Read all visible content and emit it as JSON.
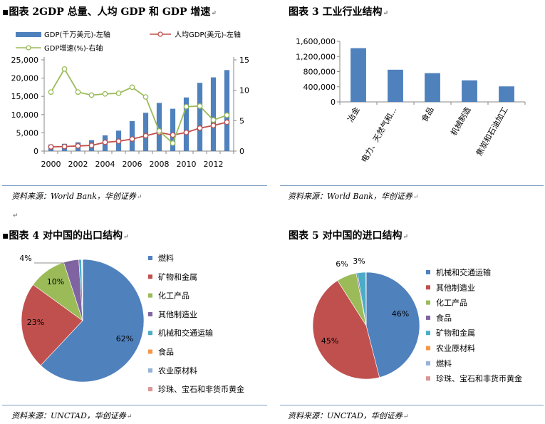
{
  "panels": {
    "p2": {
      "title": "▪图表 2GDP 总量、人均 GDP 和 GDP 增速",
      "source": "资料来源：World Bank，华创证券"
    },
    "p3": {
      "title": "图表 3 工业行业结构",
      "source": "资料来源：World Bank，华创证券"
    },
    "p4": {
      "title": "▪图表 4 对中国的出口结构",
      "source": "资料来源：UNCTAD，华创证券"
    },
    "p5": {
      "title": "图表 5 对中国的进口结构",
      "source": "资料来源：UNCTAD，华创证券"
    }
  },
  "marks": {
    "return": "↵",
    "anchor": "↵"
  },
  "chart_data": [
    {
      "id": "chart2",
      "type": "bar+line",
      "title": "GDP 总量、人均 GDP 和 GDP 增速",
      "x": [
        2000,
        2001,
        2002,
        2003,
        2004,
        2005,
        2006,
        2007,
        2008,
        2009,
        2010,
        2011,
        2012,
        2013
      ],
      "x_ticks": [
        "2000",
        "2002",
        "2004",
        "2006",
        "2008",
        "2010",
        "2012"
      ],
      "y_left_ticks": [
        "0",
        "5,000",
        "10,000",
        "15,000",
        "20,000",
        "25,000"
      ],
      "y_left_lim": [
        0,
        25000
      ],
      "y_right_ticks": [
        "0",
        "5",
        "10",
        "15"
      ],
      "y_right_lim": [
        0,
        15
      ],
      "series": [
        {
          "name": "GDP(千万美元)-左轴",
          "type": "bar",
          "axis": "left",
          "color": "#4f81bd",
          "values": [
            1800,
            2000,
            2400,
            3000,
            4300,
            5600,
            8200,
            10500,
            13200,
            11600,
            14700,
            18700,
            20200,
            22200
          ]
        },
        {
          "name": "人均GDP(美元)-左轴",
          "type": "line",
          "axis": "left",
          "color": "#c0504d",
          "values": [
            1150,
            1250,
            1400,
            1550,
            2400,
            2700,
            3300,
            4200,
            5100,
            4400,
            5100,
            6300,
            7000,
            7900
          ]
        },
        {
          "name": "GDP增速(%)-右轴",
          "type": "line",
          "axis": "right",
          "color": "#9bbb59",
          "values": [
            9.7,
            13.5,
            9.7,
            9.2,
            9.4,
            9.5,
            10.5,
            8.9,
            3.3,
            1.3,
            7.3,
            7.4,
            5.1,
            5.9
          ]
        }
      ]
    },
    {
      "id": "chart3",
      "type": "bar",
      "title": "工业行业结构",
      "categories": [
        "冶金",
        "电力、天然气和...",
        "食品",
        "机械制造",
        "焦炭和石油加工"
      ],
      "values": [
        1420000,
        850000,
        760000,
        570000,
        410000
      ],
      "y_ticks": [
        "0",
        "400,000",
        "800,000",
        "1,200,000",
        "1,600,000"
      ],
      "ylim": [
        0,
        1600000
      ],
      "color": "#4f81bd"
    },
    {
      "id": "chart4",
      "type": "pie",
      "title": "对中国的出口结构",
      "slices": [
        {
          "label": "燃料",
          "value": 62,
          "color": "#4f81bd"
        },
        {
          "label": "矿物和金属",
          "value": 23,
          "color": "#c0504d"
        },
        {
          "label": "化工产品",
          "value": 10,
          "color": "#9bbb59"
        },
        {
          "label": "其他制造业",
          "value": 4,
          "color": "#8064a2"
        },
        {
          "label": "机械和交通运输",
          "value": 0.7,
          "color": "#4bacc6"
        },
        {
          "label": "食品",
          "value": 0.1,
          "color": "#f79646"
        },
        {
          "label": "农业原材料",
          "value": 0.1,
          "color": "#95b3d7"
        },
        {
          "label": "珍珠、宝石和非货币黄金",
          "value": 0.1,
          "color": "#d99694"
        }
      ],
      "data_labels": [
        "62%",
        "23%",
        "10%",
        "4%"
      ]
    },
    {
      "id": "chart5",
      "type": "pie",
      "title": "对中国的进口结构",
      "slices": [
        {
          "label": "机械和交通运输",
          "value": 46,
          "color": "#4f81bd"
        },
        {
          "label": "其他制造业",
          "value": 45,
          "color": "#c0504d"
        },
        {
          "label": "化工产品",
          "value": 6,
          "color": "#9bbb59"
        },
        {
          "label": "食品",
          "value": 0.4,
          "color": "#8064a2"
        },
        {
          "label": "矿物和金属",
          "value": 2.5,
          "color": "#4bacc6"
        },
        {
          "label": "农业原材料",
          "value": 0.05,
          "color": "#f79646"
        },
        {
          "label": "燃料",
          "value": 0.03,
          "color": "#95b3d7"
        },
        {
          "label": "珍珠、宝石和非货币黄金",
          "value": 0.02,
          "color": "#d99694"
        }
      ],
      "data_labels": [
        "46%",
        "45%",
        "6%",
        "3%"
      ]
    }
  ]
}
